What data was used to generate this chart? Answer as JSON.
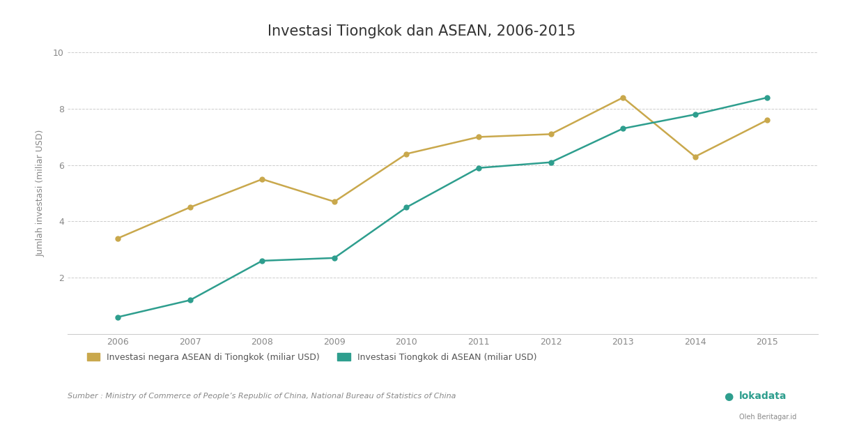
{
  "title": "Investasi Tiongkok dan ASEAN, 2006-2015",
  "years": [
    2006,
    2007,
    2008,
    2009,
    2010,
    2011,
    2012,
    2013,
    2014,
    2015
  ],
  "asean_in_china": [
    3.4,
    4.5,
    5.5,
    4.7,
    6.4,
    7.0,
    7.1,
    8.4,
    6.3,
    7.6
  ],
  "china_in_asean": [
    0.6,
    1.2,
    2.6,
    2.7,
    4.5,
    5.9,
    6.1,
    7.3,
    7.8,
    8.4
  ],
  "color_asean": "#C9A84C",
  "color_china": "#2E9E8E",
  "ylabel": "Jumlah investasi (miliar USD)",
  "legend_asean": "Investasi negara ASEAN di Tiongkok (miliar USD)",
  "legend_china": "Investasi Tiongkok di ASEAN (miliar USD)",
  "source": "Sumber : Ministry of Commerce of People’s Republic of China, National Bureau of Statistics of China",
  "ylim": [
    0,
    10
  ],
  "yticks": [
    0,
    2,
    4,
    6,
    8,
    10
  ],
  "ytick_labels": [
    "",
    "2",
    "4",
    "6",
    "8",
    "10"
  ],
  "bg_color": "#FFFFFF",
  "plot_bg_color": "#FFFFFF",
  "grid_color": "#CCCCCC",
  "title_fontsize": 15,
  "axis_fontsize": 9,
  "legend_fontsize": 9,
  "source_fontsize": 8,
  "tick_color": "#888888",
  "spine_color": "#CCCCCC"
}
